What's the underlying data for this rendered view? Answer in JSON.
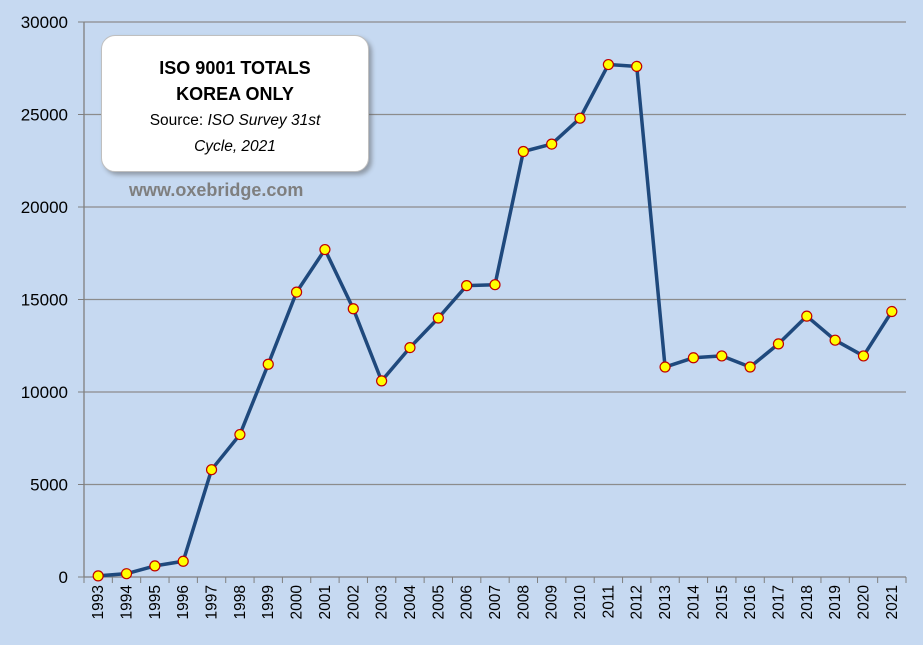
{
  "chart_data": {
    "type": "line",
    "title": "ISO 9001 TOTALS",
    "subtitle": "KOREA ONLY",
    "source_prefix": "Source: ",
    "source_italic_1": "ISO Survey 31st",
    "source_italic_2": "Cycle, 2021",
    "watermark": "www.oxebridge.com",
    "xlabel": "",
    "ylabel": "",
    "ylim": [
      0,
      30000
    ],
    "yticks": [
      0,
      5000,
      10000,
      15000,
      20000,
      25000,
      30000
    ],
    "grid": true,
    "legend": "none",
    "categories": [
      "1993",
      "1994",
      "1995",
      "1996",
      "1997",
      "1998",
      "1999",
      "2000",
      "2001",
      "2002",
      "2003",
      "2004",
      "2005",
      "2006",
      "2007",
      "2008",
      "2009",
      "2010",
      "2011",
      "2012",
      "2013",
      "2014",
      "2015",
      "2016",
      "2017",
      "2018",
      "2019",
      "2020",
      "2021"
    ],
    "series": [
      {
        "values": [
          60,
          180,
          600,
          850,
          5800,
          7700,
          11500,
          15400,
          17700,
          14500,
          10600,
          12400,
          14000,
          15750,
          15800,
          23000,
          23400,
          24800,
          27700,
          27600,
          11350,
          11850,
          11950,
          11350,
          12600,
          14100,
          12800,
          11950,
          14350
        ],
        "line_color": "#1f497d",
        "marker_fill": "#ffff00",
        "marker_edge": "#c00000"
      }
    ]
  }
}
